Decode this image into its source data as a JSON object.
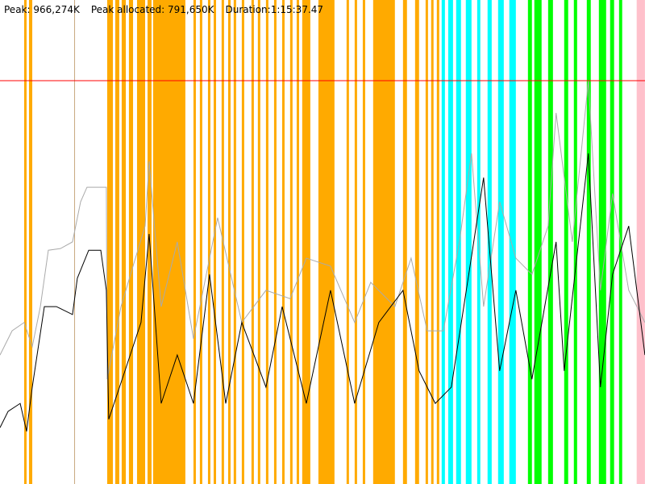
{
  "header": {
    "peak": "Peak: 966,274K",
    "peak_allocated": "Peak allocated: 791,650K",
    "duration": "Duration:1:15:37.47"
  },
  "chart_data": {
    "type": "line",
    "x_unit": "seconds",
    "y_unit": "K",
    "xlim": [
      0,
      4537.47
    ],
    "ylim": [
      0,
      1159500
    ],
    "grid": false,
    "peak_line": {
      "value": 966274,
      "color": "#ff0000"
    },
    "band_colors": {
      "orange": "#ffaa00",
      "cyan": "#00ffff",
      "green": "#00ff00",
      "pink": "#ffc0cb",
      "tan": "#c8aa80"
    },
    "bands": [
      [
        170,
        187,
        "orange"
      ],
      [
        204,
        227,
        "orange"
      ],
      [
        522,
        526,
        "tan"
      ],
      [
        754,
        794,
        "orange"
      ],
      [
        811,
        839,
        "orange"
      ],
      [
        856,
        885,
        "orange"
      ],
      [
        907,
        936,
        "orange"
      ],
      [
        964,
        1021,
        "orange"
      ],
      [
        1038,
        1066,
        "orange"
      ],
      [
        1077,
        1304,
        "orange"
      ],
      [
        1361,
        1378,
        "orange"
      ],
      [
        1406,
        1423,
        "orange"
      ],
      [
        1463,
        1480,
        "orange"
      ],
      [
        1503,
        1520,
        "orange"
      ],
      [
        1559,
        1576,
        "orange"
      ],
      [
        1605,
        1622,
        "orange"
      ],
      [
        1644,
        1661,
        "orange"
      ],
      [
        1701,
        1718,
        "orange"
      ],
      [
        1769,
        1786,
        "orange"
      ],
      [
        1814,
        1831,
        "orange"
      ],
      [
        1871,
        1888,
        "orange"
      ],
      [
        1928,
        1945,
        "orange"
      ],
      [
        1985,
        2002,
        "orange"
      ],
      [
        2041,
        2058,
        "orange"
      ],
      [
        2087,
        2104,
        "orange"
      ],
      [
        2126,
        2183,
        "orange"
      ],
      [
        2240,
        2353,
        "orange"
      ],
      [
        2438,
        2455,
        "orange"
      ],
      [
        2495,
        2512,
        "orange"
      ],
      [
        2552,
        2569,
        "orange"
      ],
      [
        2625,
        2778,
        "orange"
      ],
      [
        2835,
        2863,
        "orange"
      ],
      [
        2920,
        2948,
        "orange"
      ],
      [
        2994,
        3011,
        "orange"
      ],
      [
        3033,
        3050,
        "orange"
      ],
      [
        3073,
        3090,
        "orange"
      ],
      [
        3107,
        3130,
        "cyan"
      ],
      [
        3153,
        3187,
        "cyan"
      ],
      [
        3209,
        3243,
        "cyan"
      ],
      [
        3277,
        3317,
        "cyan"
      ],
      [
        3357,
        3379,
        "cyan"
      ],
      [
        3430,
        3459,
        "cyan"
      ],
      [
        3504,
        3544,
        "cyan"
      ],
      [
        3583,
        3629,
        "cyan"
      ],
      [
        3714,
        3742,
        "green"
      ],
      [
        3759,
        3810,
        "green"
      ],
      [
        3856,
        3890,
        "green"
      ],
      [
        3969,
        3997,
        "green"
      ],
      [
        4037,
        4060,
        "green"
      ],
      [
        4128,
        4156,
        "green"
      ],
      [
        4213,
        4264,
        "green"
      ],
      [
        4292,
        4320,
        "green"
      ],
      [
        4355,
        4377,
        "green"
      ],
      [
        4479,
        4537,
        "pink"
      ]
    ],
    "series": [
      {
        "color": "#aaaaaa",
        "points": [
          [
            0,
            309000
          ],
          [
            85,
            367000
          ],
          [
            170,
            387000
          ],
          [
            227,
            329000
          ],
          [
            284,
            425000
          ],
          [
            340,
            560000
          ],
          [
            425,
            564000
          ],
          [
            510,
            580000
          ],
          [
            567,
            676000
          ],
          [
            612,
            711000
          ],
          [
            748,
            711000
          ],
          [
            754,
            251000
          ],
          [
            851,
            425000
          ],
          [
            936,
            522000
          ],
          [
            1021,
            618000
          ],
          [
            1049,
            773000
          ],
          [
            1134,
            425000
          ],
          [
            1247,
            580000
          ],
          [
            1361,
            348000
          ],
          [
            1531,
            638000
          ],
          [
            1701,
            387000
          ],
          [
            1871,
            464000
          ],
          [
            2041,
            444000
          ],
          [
            2155,
            541000
          ],
          [
            2325,
            522000
          ],
          [
            2495,
            387000
          ],
          [
            2608,
            483000
          ],
          [
            2778,
            425000
          ],
          [
            2892,
            541000
          ],
          [
            3005,
            367000
          ],
          [
            3119,
            367000
          ],
          [
            3232,
            580000
          ],
          [
            3317,
            792000
          ],
          [
            3402,
            425000
          ],
          [
            3515,
            676000
          ],
          [
            3629,
            541000
          ],
          [
            3742,
            502000
          ],
          [
            3856,
            618000
          ],
          [
            3912,
            889000
          ],
          [
            4026,
            580000
          ],
          [
            4139,
            966000
          ],
          [
            4224,
            464000
          ],
          [
            4309,
            696000
          ],
          [
            4423,
            464000
          ],
          [
            4537,
            387000
          ]
        ]
      },
      {
        "color": "#000000",
        "points": [
          [
            0,
            135000
          ],
          [
            57,
            174000
          ],
          [
            142,
            193000
          ],
          [
            187,
            126000
          ],
          [
            227,
            232000
          ],
          [
            312,
            425000
          ],
          [
            397,
            425000
          ],
          [
            510,
            406000
          ],
          [
            544,
            493000
          ],
          [
            624,
            560000
          ],
          [
            709,
            560000
          ],
          [
            748,
            464000
          ],
          [
            765,
            155000
          ],
          [
            879,
            271000
          ],
          [
            992,
            387000
          ],
          [
            1049,
            599000
          ],
          [
            1134,
            193000
          ],
          [
            1247,
            309000
          ],
          [
            1361,
            193000
          ],
          [
            1474,
            502000
          ],
          [
            1588,
            193000
          ],
          [
            1701,
            387000
          ],
          [
            1871,
            232000
          ],
          [
            1985,
            425000
          ],
          [
            2155,
            193000
          ],
          [
            2325,
            464000
          ],
          [
            2495,
            193000
          ],
          [
            2665,
            387000
          ],
          [
            2835,
            464000
          ],
          [
            2948,
            271000
          ],
          [
            3062,
            193000
          ],
          [
            3175,
            232000
          ],
          [
            3289,
            483000
          ],
          [
            3402,
            734000
          ],
          [
            3515,
            271000
          ],
          [
            3629,
            464000
          ],
          [
            3742,
            251000
          ],
          [
            3912,
            580000
          ],
          [
            3969,
            271000
          ],
          [
            4139,
            792000
          ],
          [
            4224,
            232000
          ],
          [
            4309,
            502000
          ],
          [
            4423,
            618000
          ],
          [
            4537,
            309000
          ]
        ]
      }
    ]
  }
}
